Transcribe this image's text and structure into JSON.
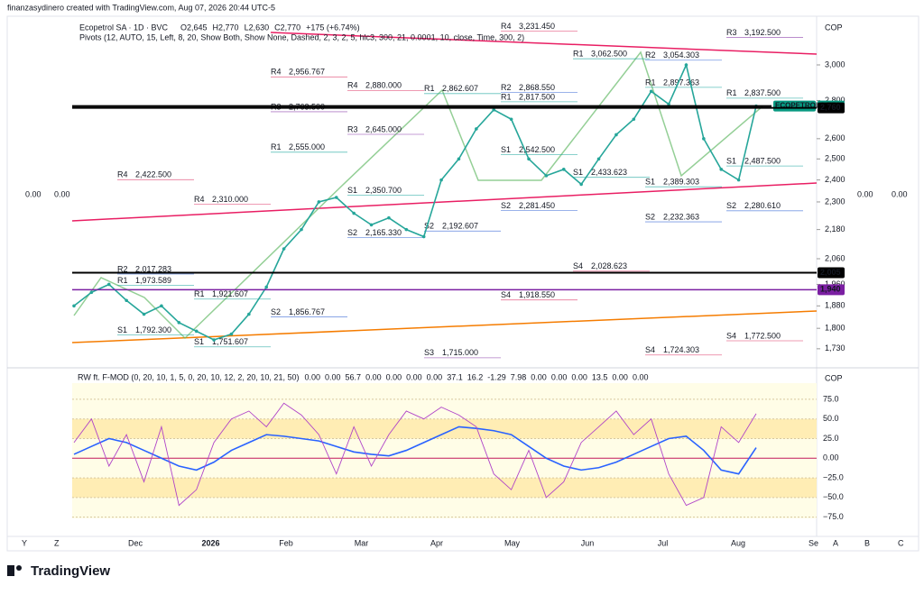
{
  "header": {
    "credit": "finanzasydinero created with TradingView.com, Aug 07, 2026 20:44 UTC-5",
    "symbol": "Ecopetrol SA · 1D · BVC",
    "ohlc": [
      "O2,645",
      "H2,770",
      "L2,630",
      "C2,770",
      "+175 (+6.74%)"
    ],
    "pivots": "Pivots (12, AUTO, 15, Left, 8, 20, Show Both, Show None, Dashed, 2, 3, 2, 5, hlc3, 300, 21, 0.0001, 10, close, Time, 300, 2)"
  },
  "side_values": {
    "left": [
      "0.00",
      "0.00"
    ],
    "right": [
      "0.00",
      "0.00"
    ]
  },
  "price_chart": {
    "currency": "COP",
    "log_scale": true,
    "ylim": [
      1676,
      3297
    ],
    "yticks": [
      {
        "value": 3000,
        "label": "3,000"
      },
      {
        "value": 2800,
        "label": "2,800"
      },
      {
        "value": 2600,
        "label": "2,600"
      },
      {
        "value": 2500,
        "label": "2,500"
      },
      {
        "value": 2400,
        "label": "2,400"
      },
      {
        "value": 2300,
        "label": "2,300"
      },
      {
        "value": 2180,
        "label": "2,180"
      },
      {
        "value": 2060,
        "label": "2,060"
      },
      {
        "value": 1960,
        "label": "1,960"
      },
      {
        "value": 1880,
        "label": "1,880"
      },
      {
        "value": 1800,
        "label": "1,800"
      },
      {
        "value": 1730,
        "label": "1,730"
      }
    ],
    "closes": [
      1880,
      1930,
      1960,
      1900,
      1850,
      1880,
      1820,
      1790,
      1760,
      1780,
      1850,
      1950,
      2100,
      2180,
      2300,
      2320,
      2250,
      2200,
      2230,
      2180,
      2150,
      2400,
      2500,
      2650,
      2750,
      2700,
      2500,
      2420,
      2450,
      2380,
      2500,
      2620,
      2700,
      2850,
      2780,
      3000,
      2600,
      2450,
      2400,
      2770
    ],
    "close_color": "#26a69a",
    "price_tags": [
      {
        "text": "ECOPETROL",
        "value": 2770,
        "label": "2,770",
        "color": "#089981"
      },
      {
        "value": 2760,
        "label": "2,760",
        "color": "#000000"
      },
      {
        "value": 2005,
        "label": "2,005",
        "color": "#000000"
      },
      {
        "value": 1940,
        "label": "1,940",
        "color": "#7b1fa2"
      }
    ],
    "level_colors": {
      "R4": "#e0406e",
      "R3": "#8e44ad",
      "R2": "#3f6fd8",
      "R1": "#1ea7a0",
      "S1": "#1ea7a0",
      "S2": "#3f6fd8",
      "S3": "#8e44ad",
      "S4": "#e0406e"
    },
    "pivot_groups": [
      [
        {
          "level": "R4",
          "label": "2,422.500",
          "value": 2422.5
        },
        {
          "level": "R2",
          "label": "2,017.283",
          "value": 2017.283
        },
        {
          "level": "R1",
          "label": "1,973.589",
          "value": 1973.589
        },
        {
          "level": "S1",
          "label": "1,792.300",
          "value": 1792.3
        }
      ],
      [
        {
          "level": "R4",
          "label": "2,310.000",
          "value": 2310
        },
        {
          "level": "R1",
          "label": "1,921.607",
          "value": 1921.607
        },
        {
          "level": "S1",
          "label": "1,751.607",
          "value": 1751.607
        }
      ],
      [
        {
          "level": "R4",
          "label": "2,956.767",
          "value": 2956.767
        },
        {
          "level": "R3",
          "label": "2,763.500",
          "value": 2763.5
        },
        {
          "level": "R1",
          "label": "2,555.000",
          "value": 2555
        },
        {
          "level": "S2",
          "label": "1,856.767",
          "value": 1856.767
        }
      ],
      [
        {
          "level": "R4",
          "label": "2,880.000",
          "value": 2880
        },
        {
          "level": "R3",
          "label": "2,645.000",
          "value": 2645
        },
        {
          "level": "S1",
          "label": "2,350.700",
          "value": 2350.7
        },
        {
          "level": "S2",
          "label": "2,165.330",
          "value": 2165.33
        }
      ],
      [
        {
          "level": "R1",
          "label": "2,862.607",
          "value": 2862.607
        },
        {
          "level": "S2",
          "label": "2,192.607",
          "value": 2192.607
        },
        {
          "level": "S3",
          "label": "1,715.000",
          "value": 1715
        }
      ],
      [
        {
          "level": "R4",
          "label": "3,231.450",
          "value": 3231.45
        },
        {
          "level": "R2",
          "label": "2,868.550",
          "value": 2868.55
        },
        {
          "level": "R1",
          "label": "2,817.500",
          "value": 2817.5
        },
        {
          "level": "S1",
          "label": "2,542.500",
          "value": 2542.5
        },
        {
          "level": "S2",
          "label": "2,281.450",
          "value": 2281.45
        },
        {
          "level": "S4",
          "label": "1,918.550",
          "value": 1918.55
        }
      ],
      [
        {
          "level": "R1",
          "label": "3,062.500",
          "value": 3062.5
        },
        {
          "level": "S1",
          "label": "2,433.623",
          "value": 2433.623
        },
        {
          "level": "S4",
          "label": "2,028.623",
          "value": 2028.623
        }
      ],
      [
        {
          "level": "R2",
          "label": "3,054.303",
          "value": 3054.303
        },
        {
          "level": "R1",
          "label": "2,897.363",
          "value": 2897.363
        },
        {
          "level": "S1",
          "label": "2,389.303",
          "value": 2389.303
        },
        {
          "level": "S2",
          "label": "2,232.363",
          "value": 2232.363
        },
        {
          "level": "S4",
          "label": "1,724.303",
          "value": 1724.303
        }
      ],
      [
        {
          "level": "R3",
          "label": "3,192.500",
          "value": 3192.5
        },
        {
          "level": "R1",
          "label": "2,837.500",
          "value": 2837.5
        },
        {
          "level": "S1",
          "label": "2,487.500",
          "value": 2487.5
        },
        {
          "level": "S2",
          "label": "2,280.610",
          "value": 2280.61
        },
        {
          "level": "S4",
          "label": "1,772.500",
          "value": 1772.5
        }
      ]
    ]
  },
  "oscillator": {
    "title": "RW ft. F-MOD (0, 20, 10, 1, 5, 0, 20, 10, 12, 2, 20, 10, 21, 50)",
    "readings": [
      {
        "text": "0.00",
        "color": "#ff9800"
      },
      {
        "text": "0.00",
        "color": "#fbc02d"
      },
      {
        "text": "56.7",
        "color": "#9c27b0"
      },
      {
        "text": "0.00",
        "color": "#e040fb"
      },
      {
        "text": "0.00",
        "color": "#ab47bc"
      },
      {
        "text": "0.00",
        "color": "#7e57c2"
      },
      {
        "text": "0.00",
        "color": "#5c6bc0"
      },
      {
        "text": "37.1",
        "color": "#4caf50"
      },
      {
        "text": "16.2",
        "color": "#f44336"
      },
      {
        "text": "-1.29",
        "color": "#1e88e5"
      },
      {
        "text": "7.98",
        "color": "#ff9800"
      },
      {
        "text": "0.00",
        "color": "#3949ab"
      },
      {
        "text": "0.00",
        "color": "#3949ab"
      },
      {
        "text": "0.00",
        "color": "#3949ab"
      },
      {
        "text": "13.5",
        "color": "#26a69a"
      },
      {
        "text": "0.00",
        "color": "#1e3ad8"
      },
      {
        "text": "0.00",
        "color": "#1e3ad8"
      }
    ],
    "currency": "COP",
    "ylim": [
      -88,
      107
    ],
    "yticks": [
      {
        "value": 75,
        "label": "75.0"
      },
      {
        "value": 50,
        "label": "50.0"
      },
      {
        "value": 25,
        "label": "25.0"
      },
      {
        "value": 0,
        "label": "0.00"
      },
      {
        "value": -25,
        "label": "−25.0"
      },
      {
        "value": -50,
        "label": "−50.0"
      },
      {
        "value": -75,
        "label": "−75.0"
      }
    ],
    "series": [
      {
        "name": "blue",
        "color": "#2962ff",
        "values": [
          5,
          15,
          25,
          20,
          10,
          0,
          -10,
          -15,
          -5,
          10,
          20,
          30,
          28,
          25,
          22,
          15,
          8,
          5,
          3,
          10,
          20,
          30,
          40,
          38,
          35,
          30,
          15,
          0,
          -10,
          -15,
          -12,
          -5,
          5,
          15,
          25,
          28,
          10,
          -15,
          -20,
          13.5
        ]
      },
      {
        "name": "purple",
        "color": "#b044c8",
        "values": [
          20,
          50,
          -10,
          30,
          -30,
          40,
          -60,
          -40,
          20,
          50,
          60,
          40,
          70,
          55,
          30,
          -20,
          40,
          -10,
          30,
          60,
          50,
          65,
          55,
          40,
          -20,
          -40,
          10,
          -50,
          -30,
          20,
          40,
          60,
          30,
          50,
          -20,
          -60,
          -50,
          40,
          20,
          56.7
        ]
      }
    ]
  },
  "time_axis": [
    "Dec",
    "2026",
    "Feb",
    "Mar",
    "Apr",
    "May",
    "Jun",
    "Jul",
    "Aug",
    "Se"
  ],
  "corner_letters": {
    "left": [
      "Y",
      "Z"
    ],
    "right": [
      "A",
      "B",
      "C"
    ]
  },
  "footer": "TradingView"
}
